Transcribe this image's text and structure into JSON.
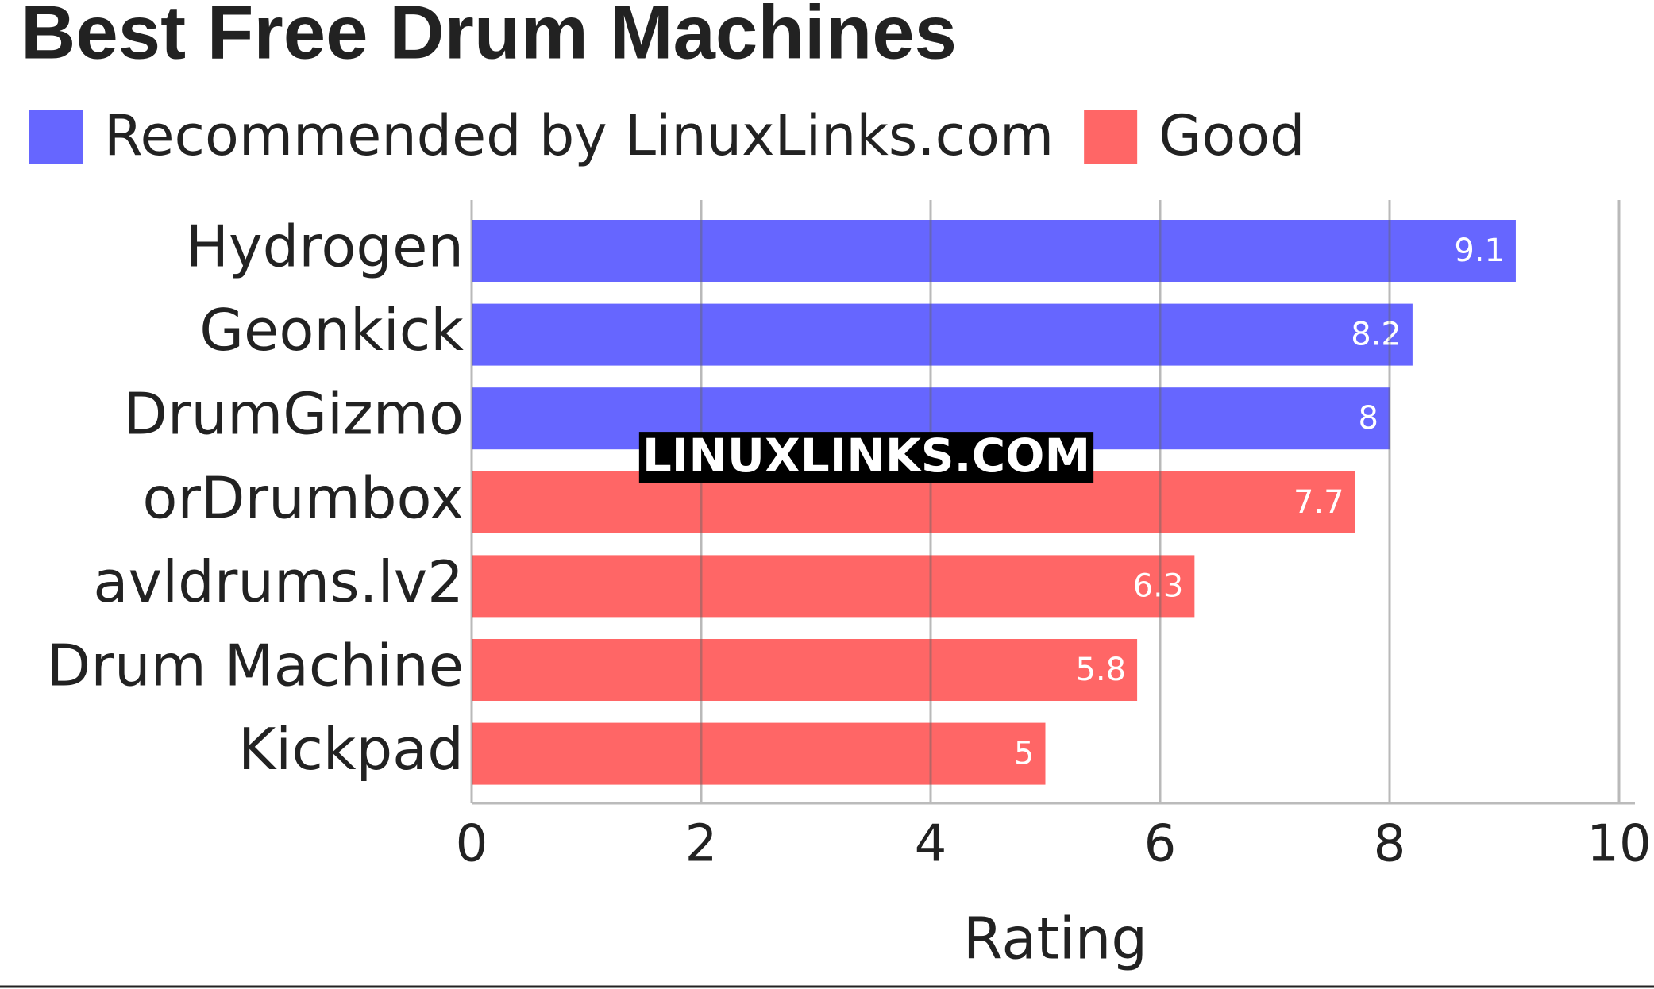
{
  "chart_data": {
    "type": "hbar",
    "title": "Best Free Drum Machines",
    "watermark": "LINUXLINKS.COM",
    "x_label": "Rating",
    "categories": [
      "Hydrogen",
      "Geonkick",
      "DrumGizmo",
      "orDrumbox",
      "avldrums.lv2",
      "Drum Machine",
      "Kickpad"
    ],
    "series": [
      {
        "name": "Recommended by LinuxLinks.com",
        "color": "#6666ff",
        "values": [
          9.1,
          8.2,
          8,
          null,
          null,
          null,
          null
        ]
      },
      {
        "name": "Good",
        "color": "#ff6666",
        "values": [
          null,
          null,
          null,
          7.7,
          6.3,
          5.8,
          5
        ]
      }
    ],
    "xlim": [
      0,
      10
    ],
    "xticks": [
      0,
      2,
      4,
      6,
      8,
      10
    ],
    "grid": true
  }
}
